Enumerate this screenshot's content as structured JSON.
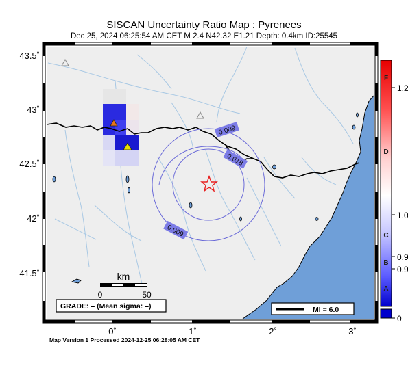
{
  "header": {
    "title": "SISCAN Uncertainty Ratio Map : Pyrenees",
    "subtitle": "Dec 25, 2024 06:25:54 AM CET   M 2.4   N42.32 E1.21   Depth: 0.4km   ID:25545"
  },
  "axes": {
    "lat_labels": [
      "43.5˚",
      "43˚",
      "42.5˚",
      "42˚",
      "41.5˚"
    ],
    "lon_labels": [
      "0˚",
      "1˚",
      "2˚",
      "3˚"
    ]
  },
  "contours": {
    "labels": [
      "0.009",
      "0.018",
      "0.009"
    ]
  },
  "scale_bar": {
    "unit": "km",
    "ticks": [
      "0",
      "50"
    ]
  },
  "grade_box": {
    "text": "GRADE: – (Mean sigma: –)"
  },
  "legend_box": {
    "text": "MI = 6.0"
  },
  "colorbar": {
    "letters": [
      "F",
      "D",
      "C",
      "B",
      "A"
    ],
    "values": [
      "1.2",
      "1.0",
      "0.9",
      "0.9",
      "0"
    ]
  },
  "footer": {
    "text": "Map Version 1 Processed 2024-12-25 06:28:05 AM CET"
  },
  "colors": {
    "land": "#eeeeee",
    "sea": "#6f9fd8",
    "river": "#a8c8e4",
    "contour": "#6a6ad8",
    "epicenter": "#e82020",
    "high_cell": "#1a1ad0",
    "station_triangle": "#e8e000"
  },
  "icons": {
    "epicenter": "star-icon",
    "stations": "triangle-icon"
  }
}
